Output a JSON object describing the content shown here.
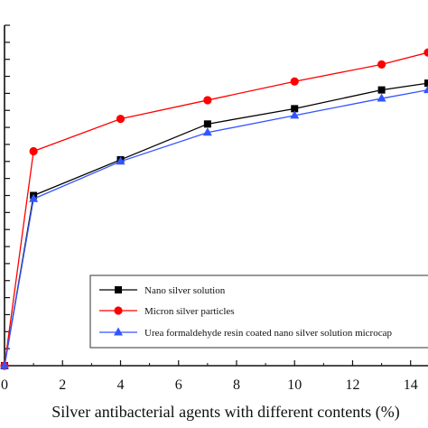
{
  "chart_data": {
    "type": "line",
    "xlabel": "Silver antibacterial agents with different contents (%)",
    "ylabel": "",
    "title": "",
    "xlim": [
      0,
      14.6
    ],
    "ylim": [
      0,
      100
    ],
    "x_ticks": [
      "0",
      "2",
      "4",
      "6",
      "8",
      "10",
      "12",
      "14"
    ],
    "y_tick_count": 20,
    "grid": false,
    "legend_position": "bottom-right",
    "series": [
      {
        "name": "Nano silver solution",
        "color": "#000000",
        "marker": "square",
        "x": [
          0,
          1,
          4,
          7,
          10,
          13,
          14.6
        ],
        "y": [
          0,
          50,
          60.5,
          71,
          75.5,
          81,
          83
        ]
      },
      {
        "name": "Micron silver particles",
        "color": "#ff0000",
        "marker": "circle",
        "x": [
          0,
          1,
          4,
          7,
          10,
          13,
          14.6
        ],
        "y": [
          0,
          63,
          72.5,
          78,
          83.5,
          88.5,
          92
        ]
      },
      {
        "name": "Urea formaldehyde resin coated nano silver solution microcap",
        "color": "#3355ff",
        "marker": "triangle",
        "x": [
          0,
          1,
          4,
          7,
          10,
          13,
          14.6
        ],
        "y": [
          0,
          49,
          60,
          68.5,
          73.5,
          78.5,
          81
        ]
      }
    ]
  }
}
